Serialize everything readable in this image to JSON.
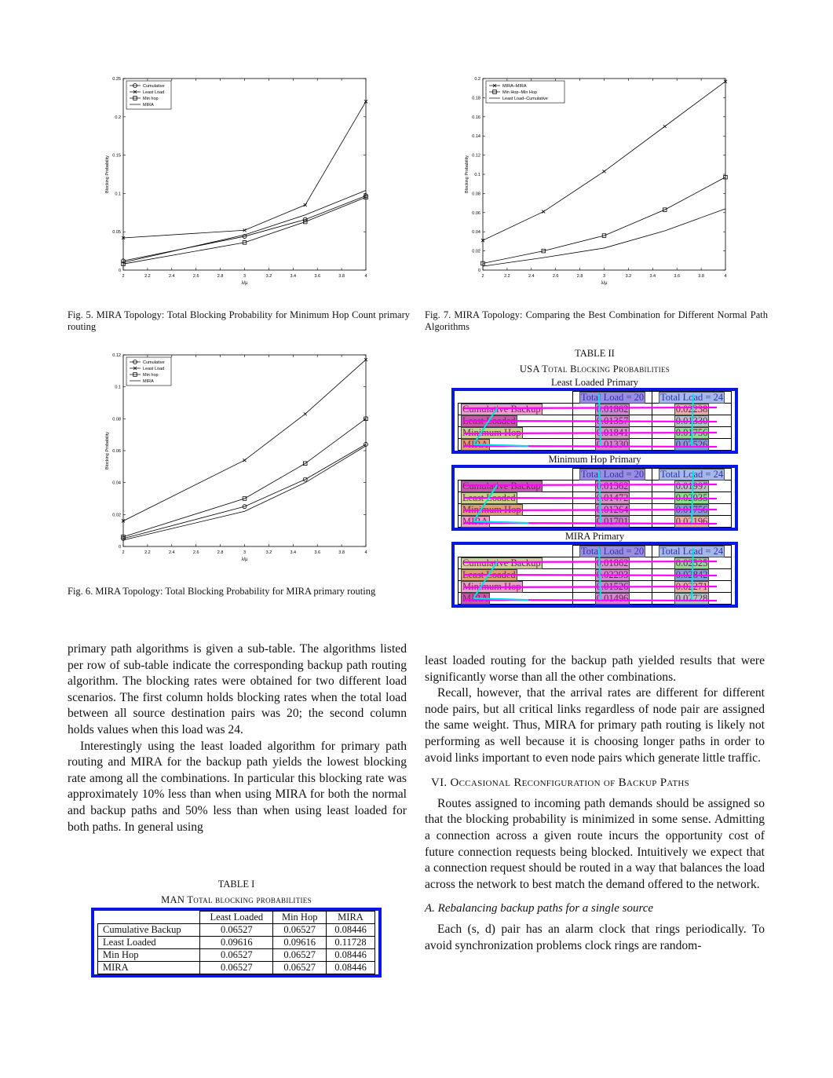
{
  "figures": {
    "fig5": {
      "caption": "Fig. 5.   MIRA Topology: Total Blocking Probability for Minimum Hop Count primary routing",
      "xlabel": "λ/μ",
      "ylabel": "Blocking Probability",
      "legend": [
        "Cumulative",
        "Least Load",
        "Min hop",
        "MIRA"
      ]
    },
    "fig6": {
      "caption": "Fig. 6.   MIRA Topology: Total Blocking Probability for MIRA primary routing",
      "xlabel": "λ/μ",
      "ylabel": "Blocking Probability",
      "legend": [
        "Cumulative",
        "Least Load",
        "Min hop",
        "MIRA"
      ]
    },
    "fig7": {
      "caption": "Fig. 7.   MIRA Topology: Comparing the Best Combination for Different Normal Path Algorithms",
      "xlabel": "λ/μ",
      "ylabel": "Blocking Probability",
      "legend": [
        "MIRA–MIRA",
        "Min Hop–Min Hop",
        "Least Load–Cumulative"
      ]
    }
  },
  "chart_data": [
    {
      "id": "fig5",
      "type": "line",
      "x": [
        2,
        3,
        3.5,
        4
      ],
      "xlim": [
        2,
        4
      ],
      "ylim": [
        0,
        0.25
      ],
      "xticks": [
        "2",
        "2.2",
        "2.4",
        "2.6",
        "2.8",
        "3",
        "3.2",
        "3.4",
        "3.6",
        "3.8",
        "4"
      ],
      "yticks": [
        "0",
        "0.05",
        "0.1",
        "0.15",
        "0.2",
        "0.25"
      ],
      "legend_position": "top-left",
      "series": [
        {
          "name": "Cumulative",
          "marker": "circle",
          "values": [
            0.012,
            0.044,
            0.066,
            0.097
          ]
        },
        {
          "name": "Least Load",
          "marker": "x",
          "values": [
            0.042,
            0.052,
            0.085,
            0.22
          ]
        },
        {
          "name": "Min hop",
          "marker": "square",
          "values": [
            0.008,
            0.036,
            0.063,
            0.095
          ]
        },
        {
          "name": "MIRA",
          "marker": "none",
          "values": [
            0.01,
            0.046,
            0.072,
            0.104
          ]
        }
      ]
    },
    {
      "id": "fig6",
      "type": "line",
      "x": [
        2,
        3,
        3.5,
        4
      ],
      "xlim": [
        2,
        4
      ],
      "ylim": [
        0,
        0.12
      ],
      "xticks": [
        "2",
        "2.2",
        "2.4",
        "2.6",
        "2.8",
        "3",
        "3.2",
        "3.4",
        "3.6",
        "3.8",
        "4"
      ],
      "yticks": [
        "0",
        "0.02",
        "0.04",
        "0.06",
        "0.08",
        "0.1",
        "0.12"
      ],
      "legend_position": "top-left",
      "series": [
        {
          "name": "Cumulative",
          "marker": "circle",
          "values": [
            0.005,
            0.025,
            0.042,
            0.064
          ]
        },
        {
          "name": "Least Load",
          "marker": "x",
          "values": [
            0.016,
            0.054,
            0.083,
            0.117
          ]
        },
        {
          "name": "Min hop",
          "marker": "square",
          "values": [
            0.006,
            0.03,
            0.052,
            0.08
          ]
        },
        {
          "name": "MIRA",
          "marker": "none",
          "values": [
            0.004,
            0.022,
            0.04,
            0.063
          ]
        }
      ]
    },
    {
      "id": "fig7",
      "type": "line",
      "x": [
        2,
        2.5,
        3,
        3.5,
        4
      ],
      "xlim": [
        2,
        4
      ],
      "ylim": [
        0,
        0.2
      ],
      "xticks": [
        "2",
        "2.2",
        "2.4",
        "2.6",
        "2.8",
        "3",
        "3.2",
        "3.4",
        "3.6",
        "3.8",
        "4"
      ],
      "yticks": [
        "0",
        "0.02",
        "0.04",
        "0.06",
        "0.08",
        "0.1",
        "0.12",
        "0.14",
        "0.16",
        "0.18",
        "0.2"
      ],
      "legend_position": "top-left",
      "series": [
        {
          "name": "MIRA–MIRA",
          "marker": "x",
          "values": [
            0.031,
            0.061,
            0.103,
            0.15,
            0.197
          ]
        },
        {
          "name": "Min Hop–Min Hop",
          "marker": "square",
          "values": [
            0.007,
            0.02,
            0.036,
            0.063,
            0.097
          ]
        },
        {
          "name": "Least Load–Cumulative",
          "marker": "none",
          "values": [
            0.004,
            0.013,
            0.023,
            0.041,
            0.064
          ]
        }
      ]
    }
  ],
  "table1": {
    "label": "TABLE I",
    "title": "MAN Total blocking probabilities",
    "headers": [
      "",
      "Least Loaded",
      "Min Hop",
      "MIRA"
    ],
    "rows": [
      [
        "Cumulative Backup",
        "0.06527",
        "0.06527",
        "0.08446"
      ],
      [
        "Least Loaded",
        "0.09616",
        "0.09616",
        "0.11728"
      ],
      [
        "Min Hop",
        "0.06527",
        "0.06527",
        "0.08446"
      ],
      [
        "MIRA",
        "0.06527",
        "0.06527",
        "0.08446"
      ]
    ]
  },
  "table2": {
    "label": "TABLE II",
    "title": "USA Total Blocking Probabilities",
    "subtables": [
      {
        "name": "Least Loaded Primary",
        "headers": [
          "",
          "Total Load = 20",
          "Total Load = 24"
        ],
        "rows": [
          [
            "Cumulative Backup",
            "0.01862",
            "0.02238"
          ],
          [
            "Least Loaded",
            "0.01357",
            "0.01330"
          ],
          [
            "Minimum Hop",
            "0.01841",
            "0.01756"
          ],
          [
            "MIRA",
            "0.01330",
            "0.02526"
          ]
        ]
      },
      {
        "name": "Minimum Hop Primary",
        "headers": [
          "",
          "Total Load = 20",
          "Total Load = 24"
        ],
        "rows": [
          [
            "Cumulative Backup",
            "0.01362",
            "0.01997"
          ],
          [
            "Least Loaded",
            "0.01472",
            "0.02035"
          ],
          [
            "Minimum Hop",
            "0.01264",
            "0.01756"
          ],
          [
            "MIRA",
            "0.01701",
            "0.02196"
          ]
        ]
      },
      {
        "name": "MIRA Primary",
        "headers": [
          "",
          "Total Load = 20",
          "Total Load = 24"
        ],
        "rows": [
          [
            "Cumulative Backup",
            "0.01862",
            "0.02525"
          ],
          [
            "Least Loaded",
            "0.02293",
            "0.02842"
          ],
          [
            "Minimum Hop",
            "0.01526",
            "0.02271"
          ],
          [
            "MIRA",
            "0.01496",
            "0.02728"
          ]
        ]
      }
    ]
  },
  "left_column": {
    "p1": "primary path algorithms is given a sub-table. The algorithms listed per row of sub-table indicate the corresponding backup path routing algorithm. The blocking rates were obtained for two different load scenarios. The first column holds blocking rates when the total load between all source destination pairs was 20; the second column holds values when this load was 24.",
    "p2": "Interestingly using the least loaded algorithm for primary path routing and MIRA for the backup path yields the lowest blocking rate among all the combinations. In particular this blocking rate was approximately 10% less than when using MIRA for both the normal and backup paths and 50% less than when using least loaded for both paths. In general using"
  },
  "right_column": {
    "p1": "least loaded routing for the backup path yielded results that were significantly worse than all the other combinations.",
    "p2": "Recall, however, that the arrival rates are different for different node pairs, but all critical links regardless of node pair are assigned the same weight. Thus, MIRA for primary path routing is likely not performing as well because it is choosing longer paths in order to avoid links important to even node pairs which generate little traffic.",
    "section_heading": "VI. Occasional Reconfiguration of Backup Paths",
    "p3": "Routes assigned to incoming path demands should be assigned so that the blocking probability is minimized in some sense. Admitting a connection across a given route incurs the opportunity cost of future connection requests being blocked. Intuitively we expect that a connection request should be routed in a way that balances the load across the network to best match the demand offered to the network.",
    "subsection_heading": "A. Rebalancing backup paths for a single source",
    "p4": "Each (s, d) pair has an alarm clock that rings periodically. To avoid synchronization problems clock rings are random-"
  },
  "colors": {
    "annotation_box": "#0a18e0",
    "annotation_line": "#ff00ff",
    "annotation_tree": "#00e5e5"
  }
}
